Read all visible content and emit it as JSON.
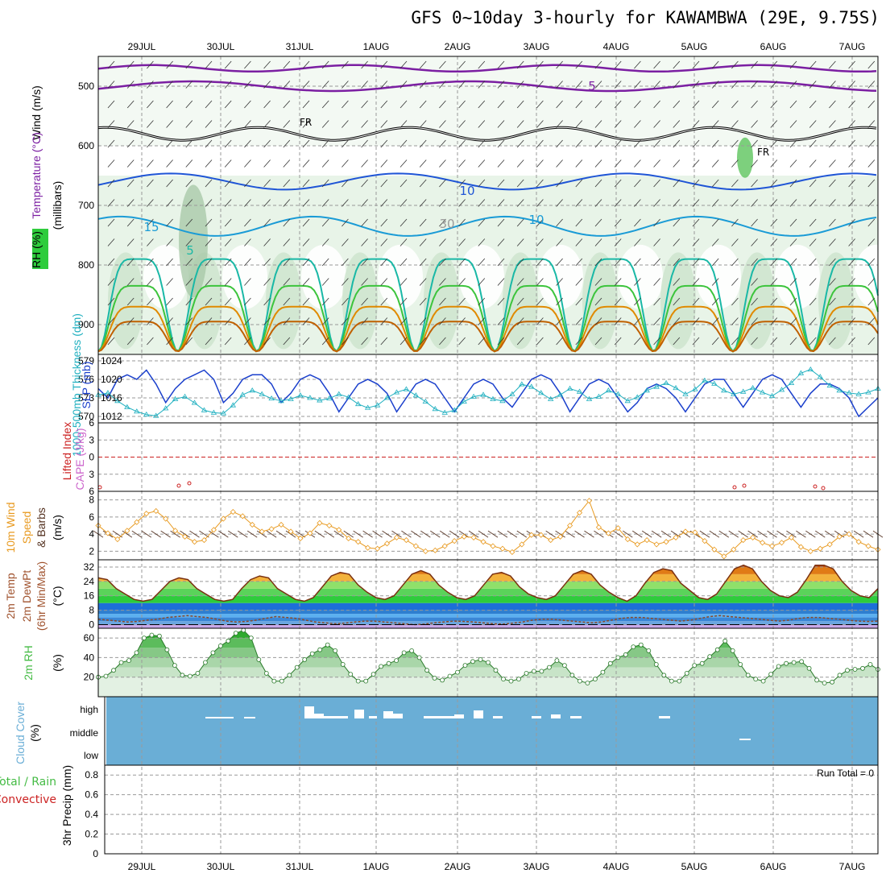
{
  "title": "GFS 0~10day 3-hourly for KAWAMBWA (29E, 9.75S)",
  "dates": [
    "29JUL",
    "30JUL",
    "31JUL",
    "1AUG",
    "2AUG",
    "3AUG",
    "4AUG",
    "5AUG",
    "6AUG",
    "7AUG"
  ],
  "colors": {
    "frame": "#000000",
    "grid": "#999999",
    "wind_isotach": "#7b1fa2",
    "freezing": "#000000",
    "temp_blue": "#1f55d6",
    "temp_cyan": "#1a9bd6",
    "temp_teal": "#19b8a6",
    "temp_green": "#3cc43c",
    "temp_orange": "#e08a00",
    "slp": "#1a3fcc",
    "thickness": "#20b0c0",
    "lifted_index": "#cc2222",
    "cape": "#cc66cc",
    "wind10m": "#e89a20",
    "barbs": "#553322",
    "cloud": "#6aaed6",
    "rh2m": "#44bb44"
  },
  "chart_data": [
    {
      "type": "heatmap",
      "panel": "upper-air",
      "ylabel_parts": [
        "RH (%)",
        "Temperature (°C)",
        "Wind (m/s)"
      ],
      "ylabel_unit": "(millibars)",
      "yticks": [
        500,
        600,
        700,
        800,
        900
      ],
      "ylim": [
        450,
        950
      ],
      "freezing_label": "FR",
      "contour_labels": [
        "5",
        "10",
        "15",
        "5",
        "10",
        "10",
        "30"
      ]
    },
    {
      "type": "line",
      "panel": "slp-thickness",
      "ylabel_left": "1000-500mb Thickness (dm)",
      "ylabel_right": "SLP (mb)",
      "yticks_left": [
        570,
        573,
        576,
        579
      ],
      "yticks_right": [
        1012,
        1016,
        1020,
        1024
      ],
      "series": [
        {
          "name": "SLP (mb)",
          "values": [
            1018,
            1016,
            1020,
            1021,
            1020,
            1022,
            1019,
            1015,
            1018,
            1020,
            1021,
            1022,
            1020,
            1015,
            1017,
            1020,
            1021,
            1021,
            1019,
            1015,
            1017,
            1020,
            1021,
            1020,
            1017,
            1013,
            1016,
            1019,
            1020,
            1019,
            1017,
            1013,
            1016,
            1019,
            1020,
            1019,
            1016,
            1013,
            1016,
            1019,
            1020,
            1019,
            1016,
            1014,
            1017,
            1020,
            1021,
            1020,
            1017,
            1013,
            1016,
            1019,
            1020,
            1019,
            1016,
            1013,
            1015,
            1018,
            1019,
            1018,
            1016,
            1013,
            1016,
            1019,
            1020,
            1020,
            1017,
            1014,
            1017,
            1020,
            1021,
            1020,
            1017,
            1014,
            1017,
            1019,
            1019,
            1018,
            1016,
            1012,
            1014,
            1016
          ]
        },
        {
          "name": "1000-500mb Thickness (dm)",
          "values": [
            573.5,
            573.8,
            572.5,
            571.5,
            570.8,
            570.3,
            570.1,
            571.3,
            572.8,
            573.2,
            572.2,
            571.0,
            570.6,
            570.5,
            571.8,
            573.5,
            574.2,
            573.6,
            572.9,
            572.5,
            572.8,
            573.4,
            573.0,
            572.6,
            572.9,
            573.6,
            573.1,
            572.0,
            571.4,
            571.8,
            573.0,
            573.9,
            574.4,
            573.4,
            572.4,
            571.2,
            570.6,
            571.0,
            572.4,
            573.2,
            573.5,
            572.8,
            572.5,
            573.6,
            575.2,
            574.8,
            573.8,
            572.8,
            573.5,
            574.5,
            574.0,
            572.8,
            573.2,
            574.2,
            573.6,
            572.5,
            573.1,
            574.2,
            574.8,
            575.4,
            574.6,
            573.6,
            574.4,
            575.8,
            575.3,
            574.2,
            573.6,
            574.0,
            574.6,
            573.9,
            573.3,
            574.3,
            575.4,
            577.0,
            577.6,
            576.4,
            575.0,
            574.2,
            573.8,
            573.6,
            573.9,
            574.5
          ]
        }
      ]
    },
    {
      "type": "line",
      "panel": "stability",
      "ylabel_left": "Lifted Index",
      "ylabel_right": "CAPE (J/kg)",
      "yticks": [
        -6,
        -3,
        0,
        3,
        6
      ],
      "yticks_text": [
        "6",
        "3",
        "0",
        "3",
        "6"
      ],
      "series": [
        {
          "name": "Lifted Index",
          "values": [
            5.3,
            5.9
          ]
        }
      ]
    },
    {
      "type": "line",
      "panel": "wind10m",
      "ylabel_parts": [
        "10m Wind",
        "Speed",
        "& Barbs"
      ],
      "ylabel_unit": "(m/s)",
      "yticks": [
        2,
        4,
        6,
        8
      ],
      "ylim": [
        1,
        9
      ],
      "series": [
        {
          "name": "10m Wind Speed",
          "values": [
            5.0,
            4.1,
            3.4,
            4.4,
            5.4,
            6.4,
            6.7,
            5.8,
            4.4,
            3.7,
            3.1,
            3.3,
            4.5,
            5.8,
            6.6,
            6.1,
            5.1,
            4.3,
            4.6,
            5.1,
            4.3,
            3.5,
            4.1,
            5.3,
            5.0,
            4.5,
            3.5,
            3.1,
            2.4,
            2.3,
            2.9,
            3.6,
            3.3,
            2.6,
            2.0,
            2.1,
            2.6,
            3.2,
            3.7,
            3.6,
            3.1,
            2.6,
            2.3,
            1.9,
            2.8,
            3.9,
            3.9,
            3.3,
            3.7,
            5.0,
            6.5,
            7.9,
            4.8,
            4.1,
            4.7,
            3.4,
            2.8,
            3.3,
            2.8,
            3.1,
            3.6,
            4.3,
            4.2,
            3.2,
            2.2,
            1.4,
            2.2,
            3.3,
            3.6,
            3.0,
            2.6,
            3.0,
            3.6,
            2.5,
            2.0,
            2.3,
            2.8,
            3.7,
            4.0,
            3.1,
            2.6,
            2.2
          ]
        }
      ]
    },
    {
      "type": "area",
      "panel": "temp2m",
      "ylabel_parts": [
        "2m Temp",
        "2m DewPt",
        "(6hr Min/Max)"
      ],
      "ylabel_unit": "(°C)",
      "yticks": [
        0,
        8,
        16,
        24,
        32
      ],
      "ylim": [
        -2,
        36
      ],
      "series": [
        {
          "name": "2m Temp",
          "values": [
            26,
            25,
            20,
            17,
            14,
            13,
            14,
            19,
            24,
            26,
            25,
            20,
            17,
            14,
            13,
            14,
            20,
            25,
            27,
            26,
            20,
            17,
            14,
            13,
            15,
            21,
            27,
            29,
            28,
            22,
            18,
            15,
            14,
            16,
            22,
            28,
            30,
            28,
            22,
            18,
            15,
            14,
            16,
            22,
            28,
            29,
            27,
            21,
            17,
            15,
            14,
            16,
            22,
            28,
            30,
            28,
            22,
            18,
            15,
            13,
            16,
            23,
            29,
            31,
            30,
            23,
            19,
            15,
            14,
            17,
            24,
            31,
            33,
            31,
            24,
            19,
            16,
            15,
            18,
            25,
            33,
            33,
            31,
            24,
            19,
            16,
            15,
            20
          ]
        },
        {
          "name": "2m DewPt",
          "values": [
            3,
            2.5,
            2,
            1.5,
            1.8,
            2.5,
            3,
            4,
            4.5,
            5,
            4.5,
            4,
            3,
            2,
            1.5,
            1.8,
            2.5,
            3.5,
            4.5,
            4,
            3.5,
            2.5,
            1.5,
            1,
            0.5,
            0.8,
            1.5,
            2,
            2,
            1.5,
            1,
            0.5,
            0,
            0.3,
            1,
            1.5,
            2,
            1.8,
            1.5,
            1,
            0.5,
            0.3,
            0.8,
            1.5,
            2.5,
            3,
            3,
            2.5,
            2,
            1.5,
            1,
            1.5,
            2.5,
            3.5,
            4,
            4,
            3.5,
            3,
            2.5,
            2,
            2.5,
            3.5,
            4.5,
            5,
            4.5,
            4,
            3.5,
            3,
            2.5,
            2,
            2.5,
            3.5,
            4,
            4,
            3.5,
            3,
            2.5,
            2,
            1.8,
            2
          ]
        }
      ]
    },
    {
      "type": "area",
      "panel": "rh2m",
      "ylabel": "2m RH",
      "ylabel_unit": "(%)",
      "yticks": [
        20,
        40,
        60
      ],
      "ylim": [
        0,
        70
      ],
      "series": [
        {
          "name": "2m RH",
          "values": [
            20,
            21,
            27,
            35,
            37,
            45,
            60,
            63,
            62,
            48,
            32,
            22,
            21,
            24,
            35,
            45,
            52,
            57,
            65,
            68,
            60,
            38,
            24,
            16,
            16,
            22,
            30,
            38,
            44,
            48,
            53,
            47,
            33,
            23,
            16,
            16,
            23,
            31,
            34,
            37,
            45,
            47,
            40,
            27,
            19,
            17,
            21,
            25,
            32,
            36,
            38,
            35,
            27,
            18,
            16,
            18,
            24,
            26,
            26,
            30,
            37,
            32,
            22,
            16,
            14,
            18,
            25,
            34,
            40,
            43,
            51,
            53,
            47,
            33,
            22,
            16,
            16,
            24,
            32,
            34,
            41,
            48,
            57,
            47,
            33,
            22,
            18,
            16,
            23,
            31,
            34,
            35,
            36,
            29,
            17,
            14,
            15,
            22,
            27,
            28,
            29,
            33,
            28
          ]
        }
      ]
    },
    {
      "type": "bar",
      "panel": "cloud",
      "ylabel": "Cloud Cover",
      "ylabel_unit": "(%)",
      "levels": [
        "high",
        "middle",
        "low"
      ]
    },
    {
      "type": "bar",
      "panel": "precip",
      "ylabel_parts": [
        "Total / Rain",
        "Convective"
      ],
      "ylabel_unit": "3hr Precip (mm)",
      "yticks": [
        0,
        0.2,
        0.4,
        0.6,
        0.8
      ],
      "yticks_text": [
        "0",
        "0.2",
        "0.4",
        "0.6",
        "0.8"
      ],
      "ylim": [
        0,
        0.9
      ],
      "run_total": "Run Total = 0"
    }
  ]
}
